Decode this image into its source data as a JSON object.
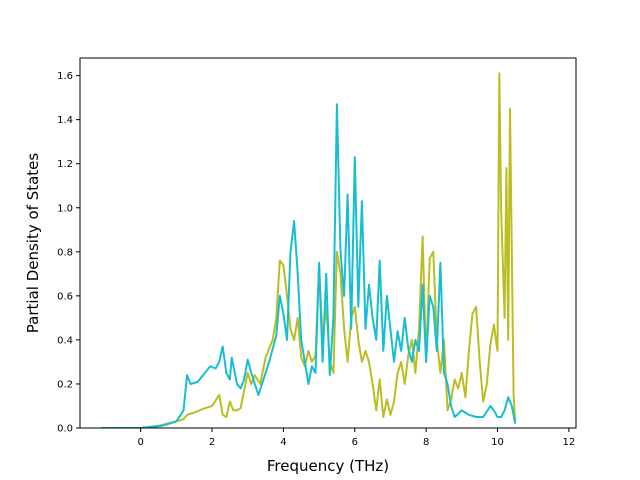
{
  "chart_data": {
    "type": "line",
    "title": "",
    "xlabel": "Frequency (THz)",
    "ylabel": "Partial Density of States",
    "xlim": [
      -1.7,
      12.2
    ],
    "ylim": [
      0.0,
      1.68
    ],
    "xticks": [
      0,
      2,
      4,
      6,
      8,
      10,
      12
    ],
    "yticks": [
      0.0,
      0.2,
      0.4,
      0.6,
      0.8,
      1.0,
      1.2,
      1.4,
      1.6
    ],
    "grid": false,
    "legend": "none",
    "series": [
      {
        "color": "#bcbd22",
        "x": [
          -1.1,
          0.0,
          0.5,
          1.0,
          1.2,
          1.3,
          1.5,
          1.8,
          2.0,
          2.2,
          2.3,
          2.4,
          2.5,
          2.6,
          2.7,
          2.8,
          3.0,
          3.1,
          3.2,
          3.35,
          3.5,
          3.7,
          3.8,
          3.9,
          4.0,
          4.1,
          4.2,
          4.3,
          4.4,
          4.5,
          4.6,
          4.7,
          4.8,
          4.9,
          5.0,
          5.1,
          5.2,
          5.3,
          5.4,
          5.5,
          5.6,
          5.7,
          5.8,
          5.9,
          6.0,
          6.1,
          6.2,
          6.3,
          6.4,
          6.5,
          6.6,
          6.7,
          6.8,
          6.9,
          7.0,
          7.1,
          7.2,
          7.3,
          7.4,
          7.5,
          7.6,
          7.7,
          7.8,
          7.9,
          8.0,
          8.1,
          8.2,
          8.3,
          8.4,
          8.5,
          8.6,
          8.7,
          8.8,
          8.9,
          9.0,
          9.1,
          9.2,
          9.3,
          9.4,
          9.5,
          9.6,
          9.7,
          9.8,
          9.9,
          10.0,
          10.05,
          10.1,
          10.2,
          10.25,
          10.3,
          10.35,
          10.4,
          10.45,
          10.5
        ],
        "y": [
          0.0,
          0.0,
          0.01,
          0.03,
          0.04,
          0.06,
          0.07,
          0.09,
          0.1,
          0.15,
          0.06,
          0.05,
          0.12,
          0.08,
          0.08,
          0.09,
          0.25,
          0.2,
          0.24,
          0.2,
          0.32,
          0.4,
          0.5,
          0.76,
          0.74,
          0.6,
          0.45,
          0.4,
          0.5,
          0.32,
          0.28,
          0.35,
          0.3,
          0.33,
          0.74,
          0.4,
          0.55,
          0.3,
          0.25,
          0.8,
          0.7,
          0.45,
          0.3,
          0.5,
          0.55,
          0.4,
          0.3,
          0.35,
          0.3,
          0.2,
          0.08,
          0.22,
          0.05,
          0.13,
          0.06,
          0.12,
          0.25,
          0.3,
          0.2,
          0.33,
          0.4,
          0.25,
          0.45,
          0.87,
          0.3,
          0.77,
          0.8,
          0.4,
          0.25,
          0.4,
          0.08,
          0.13,
          0.22,
          0.18,
          0.25,
          0.14,
          0.35,
          0.52,
          0.55,
          0.3,
          0.12,
          0.2,
          0.38,
          0.47,
          0.35,
          1.61,
          1.0,
          0.5,
          1.18,
          0.4,
          1.45,
          0.8,
          0.15,
          0.02
        ]
      },
      {
        "color": "#17becf",
        "x": [
          -1.1,
          0.0,
          0.6,
          1.0,
          1.2,
          1.3,
          1.4,
          1.6,
          1.8,
          1.95,
          2.1,
          2.2,
          2.3,
          2.4,
          2.5,
          2.55,
          2.7,
          2.8,
          2.9,
          3.0,
          3.1,
          3.2,
          3.3,
          3.4,
          3.5,
          3.6,
          3.8,
          3.9,
          4.0,
          4.1,
          4.2,
          4.3,
          4.4,
          4.5,
          4.6,
          4.7,
          4.8,
          4.9,
          5.0,
          5.1,
          5.2,
          5.3,
          5.4,
          5.5,
          5.6,
          5.7,
          5.8,
          5.9,
          6.0,
          6.1,
          6.2,
          6.3,
          6.4,
          6.5,
          6.6,
          6.7,
          6.8,
          6.9,
          7.0,
          7.1,
          7.2,
          7.3,
          7.4,
          7.5,
          7.6,
          7.7,
          7.8,
          7.9,
          8.0,
          8.1,
          8.2,
          8.3,
          8.4,
          8.5,
          8.6,
          8.7,
          8.8,
          9.0,
          9.2,
          9.4,
          9.6,
          9.8,
          9.9,
          10.0,
          10.1,
          10.2,
          10.3,
          10.4,
          10.5
        ],
        "y": [
          0.0,
          0.0,
          0.01,
          0.03,
          0.08,
          0.24,
          0.2,
          0.21,
          0.25,
          0.28,
          0.27,
          0.3,
          0.37,
          0.25,
          0.22,
          0.32,
          0.2,
          0.18,
          0.22,
          0.31,
          0.25,
          0.2,
          0.15,
          0.2,
          0.25,
          0.3,
          0.42,
          0.6,
          0.52,
          0.4,
          0.8,
          0.94,
          0.7,
          0.4,
          0.3,
          0.2,
          0.28,
          0.25,
          0.75,
          0.3,
          0.7,
          0.24,
          0.5,
          1.47,
          0.8,
          0.6,
          1.06,
          0.45,
          1.23,
          0.55,
          1.03,
          0.45,
          0.65,
          0.5,
          0.4,
          0.76,
          0.35,
          0.6,
          0.45,
          0.3,
          0.44,
          0.35,
          0.5,
          0.36,
          0.3,
          0.4,
          0.35,
          0.65,
          0.3,
          0.6,
          0.55,
          0.35,
          0.75,
          0.25,
          0.2,
          0.1,
          0.05,
          0.08,
          0.06,
          0.05,
          0.05,
          0.1,
          0.08,
          0.05,
          0.05,
          0.08,
          0.14,
          0.1,
          0.02
        ]
      }
    ]
  }
}
